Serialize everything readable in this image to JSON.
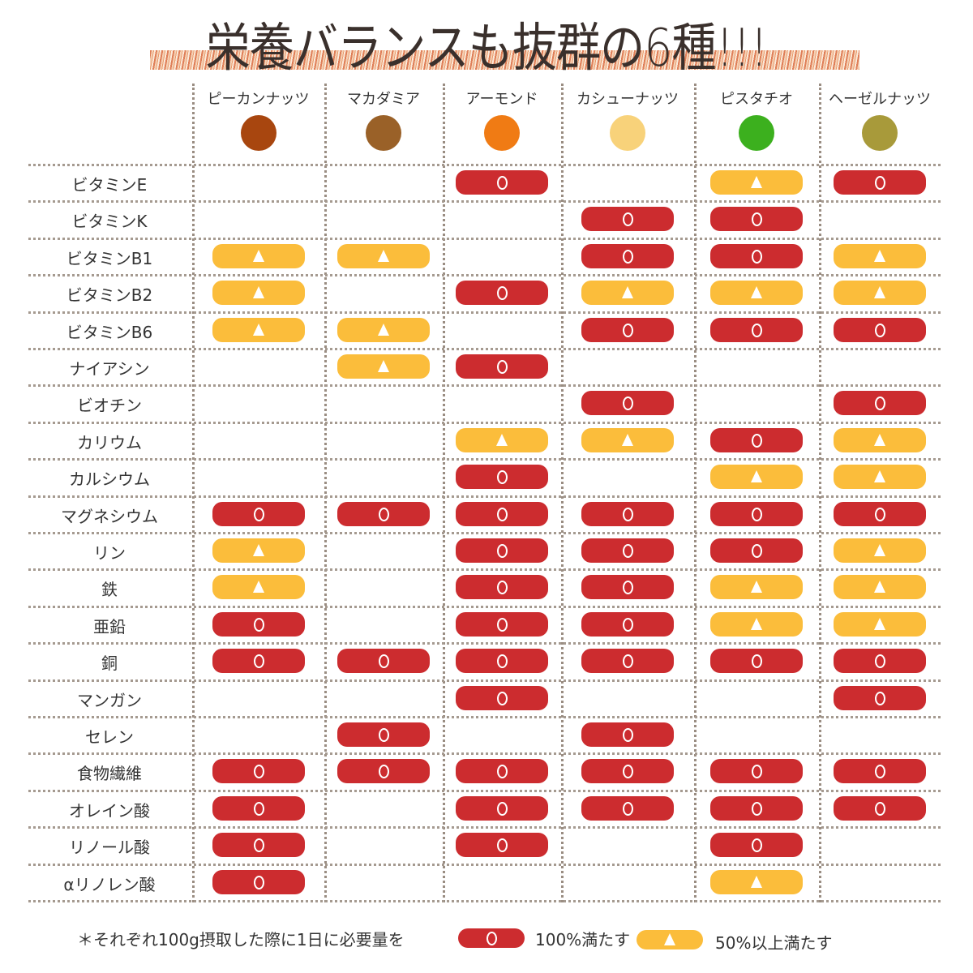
{
  "title": "栄養バランスも抜群の6種!!!",
  "nuts": [
    {
      "name": "ピーカンナッツ",
      "color": "#a8460f"
    },
    {
      "name": "マカダミア",
      "color": "#9a6128"
    },
    {
      "name": "アーモンド",
      "color": "#f07b14"
    },
    {
      "name": "カシューナッツ",
      "color": "#f8d27a"
    },
    {
      "name": "ピスタチオ",
      "color": "#3cb01e"
    },
    {
      "name": "ヘーゼルナッツ",
      "color": "#a89a3a"
    }
  ],
  "colors": {
    "full": "#cc2c2f",
    "half": "#fbbd3b"
  },
  "rows": [
    {
      "label": "ビタミンE",
      "cells": [
        "",
        "",
        "full",
        "",
        "half",
        "full"
      ]
    },
    {
      "label": "ビタミンK",
      "cells": [
        "",
        "",
        "",
        "full",
        "full",
        ""
      ]
    },
    {
      "label": "ビタミンB1",
      "cells": [
        "half",
        "half",
        "",
        "full",
        "full",
        "half"
      ]
    },
    {
      "label": "ビタミンB2",
      "cells": [
        "half",
        "",
        "full",
        "half",
        "half",
        "half"
      ]
    },
    {
      "label": "ビタミンB6",
      "cells": [
        "half",
        "half",
        "",
        "full",
        "full",
        "full"
      ]
    },
    {
      "label": "ナイアシン",
      "cells": [
        "",
        "half",
        "full",
        "",
        "",
        ""
      ]
    },
    {
      "label": "ビオチン",
      "cells": [
        "",
        "",
        "",
        "full",
        "",
        "full"
      ]
    },
    {
      "label": "カリウム",
      "cells": [
        "",
        "",
        "half",
        "half",
        "full",
        "half"
      ]
    },
    {
      "label": "カルシウム",
      "cells": [
        "",
        "",
        "full",
        "",
        "half",
        "half"
      ]
    },
    {
      "label": "マグネシウム",
      "cells": [
        "full",
        "full",
        "full",
        "full",
        "full",
        "full"
      ]
    },
    {
      "label": "リン",
      "cells": [
        "half",
        "",
        "full",
        "full",
        "full",
        "half"
      ]
    },
    {
      "label": "鉄",
      "cells": [
        "half",
        "",
        "full",
        "full",
        "half",
        "half"
      ]
    },
    {
      "label": "亜鉛",
      "cells": [
        "full",
        "",
        "full",
        "full",
        "half",
        "half"
      ]
    },
    {
      "label": "銅",
      "cells": [
        "full",
        "full",
        "full",
        "full",
        "full",
        "full"
      ]
    },
    {
      "label": "マンガン",
      "cells": [
        "",
        "",
        "full",
        "",
        "",
        "full"
      ]
    },
    {
      "label": "セレン",
      "cells": [
        "",
        "full",
        "",
        "full",
        "",
        ""
      ]
    },
    {
      "label": "食物繊維",
      "cells": [
        "full",
        "full",
        "full",
        "full",
        "full",
        "full"
      ]
    },
    {
      "label": "オレイン酸",
      "cells": [
        "full",
        "",
        "full",
        "full",
        "full",
        "full"
      ]
    },
    {
      "label": "リノール酸",
      "cells": [
        "full",
        "",
        "full",
        "",
        "full",
        ""
      ]
    },
    {
      "label": "αリノレン酸",
      "cells": [
        "full",
        "",
        "",
        "",
        "half",
        ""
      ]
    }
  ],
  "legend": {
    "note": "＊それぞれ100g摂取した際に1日に必要量を",
    "full_label": "100%満たす",
    "half_label": "50%以上満たす"
  }
}
